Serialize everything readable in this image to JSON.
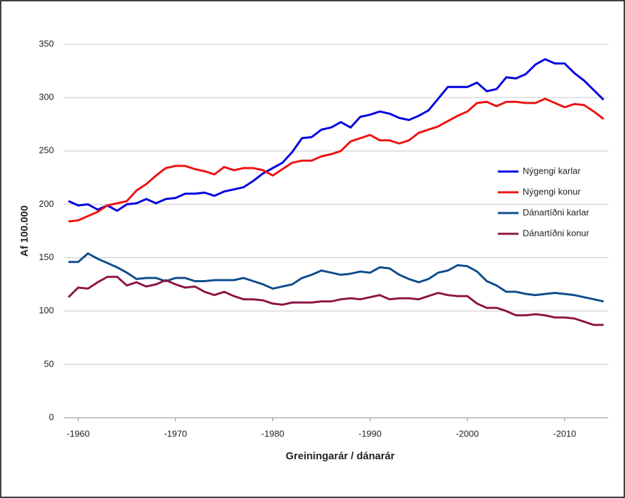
{
  "chart_data": {
    "type": "line",
    "x_label": "Greiningarár / dánarár",
    "y_label": "Af 100.000",
    "x": [
      1959,
      1960,
      1961,
      1962,
      1963,
      1964,
      1965,
      1966,
      1967,
      1968,
      1969,
      1970,
      1971,
      1972,
      1973,
      1974,
      1975,
      1976,
      1977,
      1978,
      1979,
      1980,
      1981,
      1982,
      1983,
      1984,
      1985,
      1986,
      1987,
      1988,
      1989,
      1990,
      1991,
      1992,
      1993,
      1994,
      1995,
      1996,
      1997,
      1998,
      1999,
      2000,
      2001,
      2002,
      2003,
      2004,
      2005,
      2006,
      2007,
      2008,
      2009,
      2010,
      2011,
      2012,
      2013,
      2014
    ],
    "xlim": [
      1958.5,
      2014.5
    ],
    "xticks": [
      {
        "value": 1960,
        "label": "-1960"
      },
      {
        "value": 1970,
        "label": "-1970"
      },
      {
        "value": 1980,
        "label": "-1980"
      },
      {
        "value": 1990,
        "label": "-1990"
      },
      {
        "value": 2000,
        "label": "-2000"
      },
      {
        "value": 2010,
        "label": "-2010"
      }
    ],
    "ylim": [
      0,
      350
    ],
    "yticks": [
      0,
      50,
      100,
      150,
      200,
      250,
      300,
      350
    ],
    "grid": true,
    "legend": "right",
    "series": [
      {
        "name": "Nýgengi karlar",
        "color": "#0000e0",
        "values": [
          203,
          199,
          200,
          195,
          199,
          194,
          200,
          201,
          205,
          201,
          205,
          206,
          210,
          210,
          211,
          208,
          212,
          214,
          216,
          222,
          229,
          234,
          239,
          249,
          262,
          263,
          270,
          272,
          277,
          272,
          282,
          284,
          287,
          285,
          281,
          279,
          283,
          288,
          299,
          310,
          310,
          310,
          314,
          306,
          308,
          319,
          318,
          322,
          331,
          336,
          332,
          332,
          323,
          316,
          307,
          298
        ]
      },
      {
        "name": "Nýgengi konur",
        "color": "#ee1111",
        "values": [
          184,
          185,
          189,
          193,
          199,
          201,
          203,
          213,
          219,
          227,
          234,
          236,
          236,
          233,
          231,
          228,
          235,
          232,
          234,
          234,
          232,
          227,
          233,
          239,
          241,
          241,
          245,
          247,
          250,
          259,
          262,
          265,
          260,
          260,
          257,
          260,
          267,
          270,
          273,
          278,
          283,
          287,
          295,
          296,
          292,
          296,
          296,
          295,
          295,
          299,
          295,
          291,
          294,
          293,
          287,
          280
        ]
      },
      {
        "name": "Dánartíðni karlar",
        "color": "#0e4c8c",
        "values": [
          146,
          146,
          154,
          149,
          145,
          141,
          136,
          130,
          131,
          131,
          128,
          131,
          131,
          128,
          128,
          129,
          129,
          129,
          131,
          128,
          125,
          121,
          123,
          125,
          131,
          134,
          138,
          136,
          134,
          135,
          137,
          136,
          141,
          140,
          134,
          130,
          127,
          130,
          136,
          138,
          143,
          142,
          137,
          128,
          124,
          118,
          118,
          116,
          115,
          116,
          117,
          116,
          115,
          113,
          111,
          109
        ]
      },
      {
        "name": "Dánartíðni konur",
        "color": "#8c1446",
        "values": [
          113,
          122,
          121,
          127,
          132,
          132,
          124,
          127,
          123,
          125,
          129,
          125,
          122,
          123,
          118,
          115,
          118,
          114,
          111,
          111,
          110,
          107,
          106,
          108,
          108,
          108,
          109,
          109,
          111,
          112,
          111,
          113,
          115,
          111,
          112,
          112,
          111,
          114,
          117,
          115,
          114,
          114,
          107,
          103,
          103,
          100,
          96,
          96,
          97,
          96,
          94,
          94,
          93,
          90,
          87,
          87
        ]
      }
    ]
  }
}
